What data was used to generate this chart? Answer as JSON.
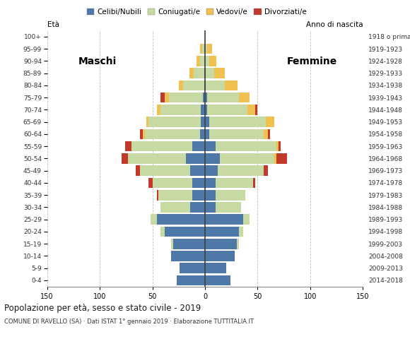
{
  "title": "Popolazione per età, sesso e stato civile - 2019",
  "subtitle": "COMUNE DI RAVELLO (SA) · Dati ISTAT 1° gennaio 2019 · Elaborazione TUTTITALIA.IT",
  "legend_labels": [
    "Celibi/Nubili",
    "Coniugati/e",
    "Vedovi/e",
    "Divorziati/e"
  ],
  "colors": {
    "single": "#4e78a8",
    "married": "#c8daa4",
    "widowed": "#f0c050",
    "divorced": "#c0392b"
  },
  "age_groups": [
    "0-4",
    "5-9",
    "10-14",
    "15-19",
    "20-24",
    "25-29",
    "30-34",
    "35-39",
    "40-44",
    "45-49",
    "50-54",
    "55-59",
    "60-64",
    "65-69",
    "70-74",
    "75-79",
    "80-84",
    "85-89",
    "90-94",
    "95-99",
    "100+"
  ],
  "birth_years": [
    "2014-2018",
    "2009-2013",
    "2004-2008",
    "1999-2003",
    "1994-1998",
    "1989-1993",
    "1984-1988",
    "1979-1983",
    "1974-1978",
    "1969-1973",
    "1964-1968",
    "1959-1963",
    "1954-1958",
    "1949-1953",
    "1944-1948",
    "1939-1943",
    "1934-1938",
    "1929-1933",
    "1924-1928",
    "1919-1923",
    "1918 o prima"
  ],
  "males": {
    "single": [
      27,
      24,
      32,
      30,
      38,
      46,
      14,
      12,
      12,
      14,
      18,
      12,
      5,
      4,
      4,
      2,
      1,
      1,
      1,
      1,
      0
    ],
    "married": [
      0,
      0,
      0,
      2,
      4,
      6,
      28,
      32,
      38,
      48,
      55,
      58,
      52,
      50,
      38,
      32,
      20,
      10,
      4,
      2,
      0
    ],
    "widowed": [
      0,
      0,
      0,
      0,
      0,
      0,
      0,
      0,
      0,
      0,
      0,
      0,
      2,
      2,
      4,
      4,
      4,
      4,
      3,
      2,
      0
    ],
    "divorced": [
      0,
      0,
      0,
      0,
      0,
      0,
      0,
      2,
      4,
      4,
      6,
      6,
      3,
      0,
      0,
      4,
      0,
      0,
      0,
      0,
      0
    ]
  },
  "females": {
    "single": [
      24,
      20,
      28,
      30,
      32,
      36,
      10,
      10,
      10,
      12,
      14,
      10,
      4,
      4,
      2,
      2,
      1,
      1,
      0,
      0,
      0
    ],
    "married": [
      0,
      0,
      0,
      2,
      4,
      6,
      24,
      28,
      36,
      44,
      52,
      58,
      52,
      54,
      38,
      30,
      18,
      8,
      4,
      2,
      0
    ],
    "widowed": [
      0,
      0,
      0,
      0,
      0,
      0,
      0,
      0,
      0,
      0,
      2,
      2,
      4,
      8,
      8,
      10,
      12,
      10,
      7,
      5,
      1
    ],
    "divorced": [
      0,
      0,
      0,
      0,
      0,
      0,
      0,
      0,
      2,
      4,
      10,
      2,
      2,
      0,
      2,
      0,
      0,
      0,
      0,
      0,
      0
    ]
  },
  "xlim": 150,
  "background_color": "#ffffff",
  "grid_color": "#b0b0b0"
}
